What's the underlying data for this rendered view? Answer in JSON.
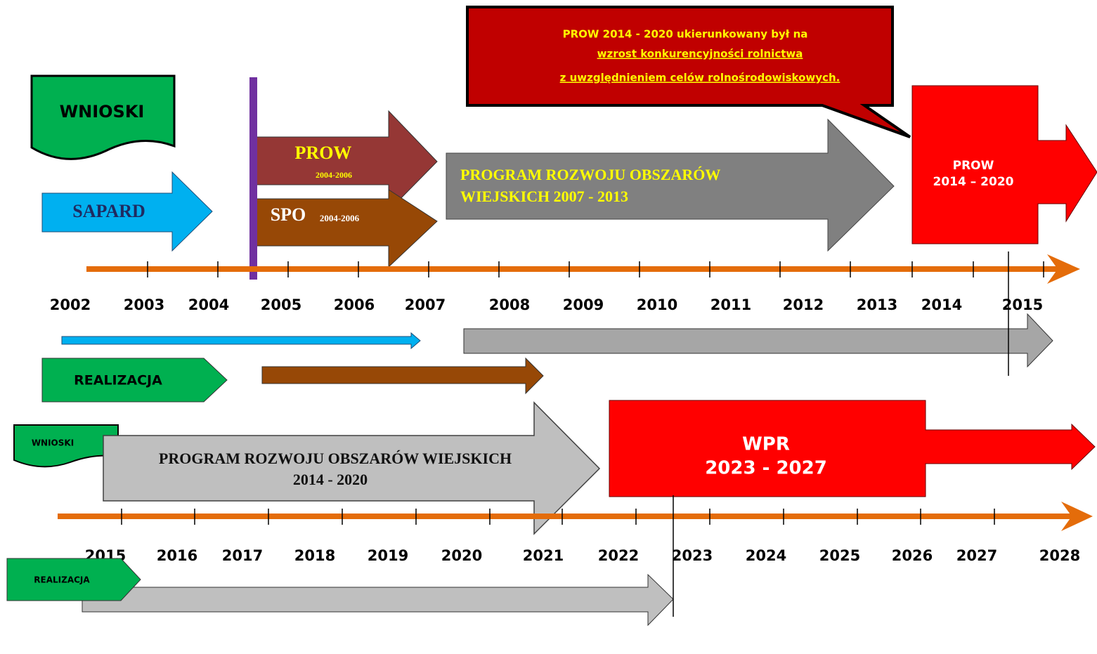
{
  "callout": {
    "lines": [
      "PROW 2014 - 2020 ukierunkowany był na",
      "wzrost konkurencyjności rolnictwa",
      "z uwzględnieniem celów rolnośrodowiskowych."
    ]
  },
  "top": {
    "wnioski": "WNIOSKI",
    "realizacja": "REALIZACJA",
    "sapard": "SAPARD",
    "prow": {
      "name": "PROW",
      "years": "2004-2006"
    },
    "spo": {
      "name": "SPO",
      "years": "2004-2006"
    },
    "program": {
      "lines": [
        "PROGRAM  ROZWOJU OBSZARÓW",
        "WIEJSKICH   2007 - 2013"
      ]
    },
    "prow2014": {
      "lines": [
        "PROW",
        "2014 – 2020"
      ]
    },
    "years": [
      "2002",
      "2003",
      "2004",
      "2005",
      "2006",
      "2007",
      "2008",
      "2009",
      "2010",
      "2011",
      "2012",
      "2013",
      "2014",
      "2015"
    ]
  },
  "bottom": {
    "wnioski": "WNIOSKI",
    "realizacja": "REALIZACJA",
    "program": {
      "lines": [
        "PROGRAM  ROZWOJU OBSZARÓW WIEJSKICH",
        "2014 - 2020"
      ]
    },
    "wpr": {
      "lines": [
        "WPR",
        "2023  -  2027"
      ]
    },
    "years": [
      "2015",
      "2016",
      "2017",
      "2018",
      "2019",
      "2020",
      "2021",
      "2022",
      "2023",
      "2024",
      "2025",
      "2026",
      "2027",
      "2028"
    ]
  }
}
